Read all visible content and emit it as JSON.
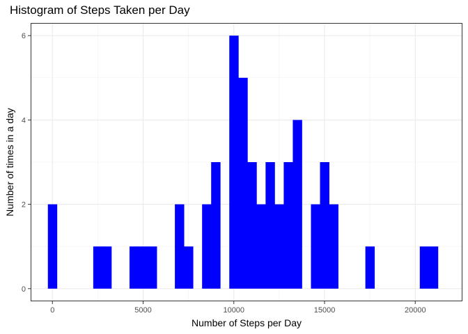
{
  "chart_data": {
    "type": "bar",
    "title": "Histogram of Steps Taken per Day",
    "xlabel": "Number of Steps per Day",
    "ylabel": "Number of times in a day",
    "xlim": [
      -1200,
      22600
    ],
    "ylim": [
      -0.3,
      6.3
    ],
    "xticks": [
      0,
      5000,
      10000,
      15000,
      20000
    ],
    "yticks": [
      0,
      2,
      4,
      6
    ],
    "bin_width": 500,
    "bar_color": "#0000ff",
    "grid": true,
    "bins": [
      {
        "x": 0,
        "count": 2
      },
      {
        "x": 2500,
        "count": 1
      },
      {
        "x": 3000,
        "count": 1
      },
      {
        "x": 4500,
        "count": 1
      },
      {
        "x": 5000,
        "count": 1
      },
      {
        "x": 5500,
        "count": 1
      },
      {
        "x": 7000,
        "count": 2
      },
      {
        "x": 7500,
        "count": 1
      },
      {
        "x": 8500,
        "count": 2
      },
      {
        "x": 9000,
        "count": 3
      },
      {
        "x": 10000,
        "count": 6
      },
      {
        "x": 10500,
        "count": 5
      },
      {
        "x": 11000,
        "count": 3
      },
      {
        "x": 11500,
        "count": 2
      },
      {
        "x": 12000,
        "count": 3
      },
      {
        "x": 12500,
        "count": 2
      },
      {
        "x": 13000,
        "count": 3
      },
      {
        "x": 13500,
        "count": 4
      },
      {
        "x": 14500,
        "count": 2
      },
      {
        "x": 15000,
        "count": 3
      },
      {
        "x": 15500,
        "count": 2
      },
      {
        "x": 17500,
        "count": 1
      },
      {
        "x": 20500,
        "count": 1
      },
      {
        "x": 21000,
        "count": 1
      }
    ]
  }
}
